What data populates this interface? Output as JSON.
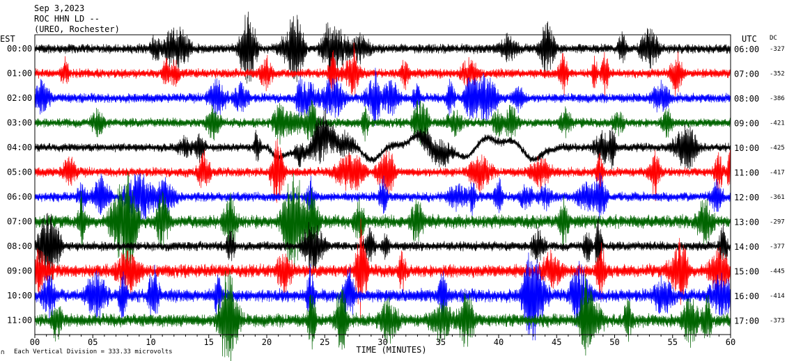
{
  "header": {
    "date": "Sep 3,2023",
    "station": "ROC HHN LD --",
    "network": "(UREO, Rochester)"
  },
  "axes": {
    "left_zone": "EST",
    "right_zone": "UTC",
    "dc_header": "DC",
    "xlabel": "TIME (MINUTES)",
    "footer": "Each Vertical Division =  333.33 microvolts",
    "footer_mark": "∩"
  },
  "colors": {
    "black": "#000000",
    "red": "#ff0000",
    "blue": "#0000ff",
    "green": "#006400",
    "frame": "#000000"
  },
  "chart_data": {
    "type": "line",
    "title": "Sep 3,2023",
    "xlabel": "TIME (MINUTES)",
    "ylabel": "",
    "xlim": [
      0,
      60
    ],
    "x_ticks": [
      "00",
      "05",
      "10",
      "15",
      "20",
      "25",
      "30",
      "35",
      "40",
      "45",
      "50",
      "55",
      "60"
    ],
    "series": [
      {
        "est": "00:00",
        "utc": "06:00",
        "dc": "-327",
        "color": "black",
        "amplitude": "medium"
      },
      {
        "est": "01:00",
        "utc": "07:00",
        "dc": "-352",
        "color": "red",
        "amplitude": "medium"
      },
      {
        "est": "02:00",
        "utc": "08:00",
        "dc": "-386",
        "color": "blue",
        "amplitude": "medium"
      },
      {
        "est": "03:00",
        "utc": "09:00",
        "dc": "-421",
        "color": "green",
        "amplitude": "medium"
      },
      {
        "est": "04:00",
        "utc": "10:00",
        "dc": "-425",
        "color": "black",
        "amplitude": "large-long-period"
      },
      {
        "est": "05:00",
        "utc": "11:00",
        "dc": "-417",
        "color": "red",
        "amplitude": "medium"
      },
      {
        "est": "06:00",
        "utc": "12:00",
        "dc": "-361",
        "color": "blue",
        "amplitude": "medium"
      },
      {
        "est": "07:00",
        "utc": "13:00",
        "dc": "-297",
        "color": "green",
        "amplitude": "large"
      },
      {
        "est": "08:00",
        "utc": "14:00",
        "dc": "-377",
        "color": "black",
        "amplitude": "medium"
      },
      {
        "est": "09:00",
        "utc": "15:00",
        "dc": "-445",
        "color": "red",
        "amplitude": "large"
      },
      {
        "est": "10:00",
        "utc": "16:00",
        "dc": "-414",
        "color": "blue",
        "amplitude": "large"
      },
      {
        "est": "11:00",
        "utc": "17:00",
        "dc": "-373",
        "color": "green",
        "amplitude": "large"
      }
    ]
  }
}
